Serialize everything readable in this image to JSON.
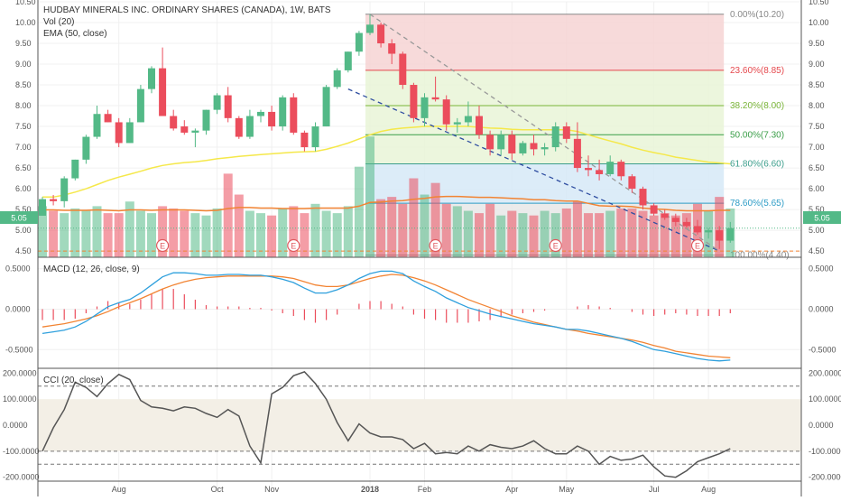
{
  "header": {
    "title": "HUDBAY MINERALS INC. ORDINARY SHARES (CANADA), 1W, BATS",
    "vol_label": "Vol (20)",
    "ema_label": "EMA (50, close)",
    "macd_label": "MACD (12, 26, close, 9)",
    "cci_label": "CCI (20, close)"
  },
  "colors": {
    "up": "#53b987",
    "down": "#eb4d5c",
    "ema": "#f5e84a",
    "macd_line": "#2fa0dd",
    "signal_line": "#f28433",
    "trendline": "#2f4ea1",
    "price_tag": "#53b987"
  },
  "price_badge": "5.05",
  "chart_data": [
    {
      "type": "candlestick",
      "name": "price",
      "yaxis": {
        "range": [
          4.35,
          10.5
        ],
        "ticks": [
          "4.50",
          "5.00",
          "5.50",
          "6.00",
          "6.50",
          "7.00",
          "7.50",
          "8.00",
          "8.50",
          "9.00",
          "9.50",
          "10.00",
          "10.50"
        ]
      },
      "xaxis": {
        "tick_labels": [
          "Aug",
          "Oct",
          "Nov",
          "2018",
          "Feb",
          "Apr",
          "May",
          "Jul",
          "Aug"
        ],
        "tick_index": [
          7,
          16,
          21,
          30,
          35,
          43,
          48,
          56,
          61
        ]
      },
      "candles": [
        [
          5.35,
          5.8,
          5.35,
          5.75
        ],
        [
          5.75,
          5.85,
          5.6,
          5.7
        ],
        [
          5.7,
          6.3,
          5.55,
          6.25
        ],
        [
          6.25,
          6.7,
          6.2,
          6.7
        ],
        [
          6.7,
          7.3,
          6.6,
          7.25
        ],
        [
          7.25,
          8.0,
          7.2,
          7.8
        ],
        [
          7.8,
          7.9,
          7.6,
          7.6
        ],
        [
          7.6,
          7.7,
          7.0,
          7.1
        ],
        [
          7.1,
          7.7,
          7.1,
          7.6
        ],
        [
          7.6,
          8.5,
          7.6,
          8.4
        ],
        [
          8.4,
          8.95,
          8.3,
          8.9
        ],
        [
          8.9,
          9.4,
          7.8,
          7.75
        ],
        [
          7.75,
          7.9,
          7.4,
          7.45
        ],
        [
          7.5,
          7.65,
          7.3,
          7.35
        ],
        [
          7.35,
          7.45,
          7.0,
          7.4
        ],
        [
          7.4,
          7.9,
          7.3,
          7.9
        ],
        [
          7.9,
          8.3,
          7.8,
          8.25
        ],
        [
          8.25,
          8.45,
          7.6,
          7.7
        ],
        [
          7.7,
          7.75,
          7.2,
          7.25
        ],
        [
          7.25,
          7.9,
          7.2,
          7.75
        ],
        [
          7.75,
          7.9,
          7.6,
          7.85
        ],
        [
          7.85,
          8.0,
          7.4,
          7.5
        ],
        [
          7.5,
          8.25,
          7.4,
          8.2
        ],
        [
          8.2,
          8.3,
          7.3,
          7.35
        ],
        [
          7.35,
          7.4,
          6.9,
          7.0
        ],
        [
          7.0,
          7.6,
          6.9,
          7.5
        ],
        [
          7.5,
          8.5,
          7.5,
          8.45
        ],
        [
          8.45,
          8.9,
          8.4,
          8.85
        ],
        [
          8.85,
          9.3,
          8.8,
          9.3
        ],
        [
          9.3,
          9.8,
          9.2,
          9.75
        ],
        [
          9.75,
          10.2,
          9.7,
          9.95
        ],
        [
          9.95,
          10.0,
          9.4,
          9.5
        ],
        [
          9.5,
          9.6,
          9.0,
          9.25
        ],
        [
          9.25,
          9.3,
          8.4,
          8.5
        ],
        [
          8.5,
          8.55,
          7.6,
          7.7
        ],
        [
          7.7,
          8.3,
          7.5,
          8.2
        ],
        [
          8.2,
          8.7,
          8.1,
          8.15
        ],
        [
          8.15,
          8.25,
          7.4,
          7.55
        ],
        [
          7.55,
          7.7,
          7.35,
          7.6
        ],
        [
          7.6,
          8.1,
          7.5,
          7.75
        ],
        [
          7.75,
          8.0,
          7.2,
          7.3
        ],
        [
          7.3,
          7.4,
          6.8,
          6.95
        ],
        [
          6.95,
          7.4,
          6.8,
          7.3
        ],
        [
          7.3,
          7.4,
          6.7,
          6.85
        ],
        [
          6.85,
          7.15,
          6.8,
          7.1
        ],
        [
          7.1,
          7.3,
          6.8,
          6.95
        ],
        [
          6.95,
          7.1,
          6.8,
          7.0
        ],
        [
          7.0,
          7.6,
          6.9,
          7.5
        ],
        [
          7.5,
          7.6,
          7.1,
          7.2
        ],
        [
          7.2,
          7.6,
          6.4,
          6.5
        ],
        [
          6.5,
          6.8,
          6.3,
          6.45
        ],
        [
          6.45,
          6.7,
          6.2,
          6.35
        ],
        [
          6.35,
          6.8,
          6.3,
          6.65
        ],
        [
          6.65,
          6.7,
          6.2,
          6.3
        ],
        [
          6.3,
          6.35,
          5.9,
          6.0
        ],
        [
          6.0,
          6.05,
          5.5,
          5.6
        ],
        [
          5.6,
          5.65,
          5.35,
          5.4
        ],
        [
          5.4,
          5.5,
          5.25,
          5.3
        ],
        [
          5.3,
          5.4,
          5.1,
          5.2
        ],
        [
          5.2,
          5.3,
          5.05,
          5.1
        ],
        [
          5.1,
          5.25,
          4.9,
          4.95
        ],
        [
          4.95,
          5.05,
          4.8,
          5.0
        ],
        [
          5.0,
          5.1,
          4.55,
          4.75
        ],
        [
          4.75,
          5.2,
          4.7,
          5.05
        ]
      ],
      "ema": [
        5.8,
        5.8,
        5.85,
        5.92,
        6.0,
        6.1,
        6.2,
        6.28,
        6.35,
        6.42,
        6.5,
        6.56,
        6.6,
        6.63,
        6.65,
        6.68,
        6.72,
        6.75,
        6.78,
        6.8,
        6.82,
        6.84,
        6.86,
        6.88,
        6.89,
        6.9,
        6.95,
        7.02,
        7.1,
        7.2,
        7.3,
        7.38,
        7.43,
        7.46,
        7.48,
        7.5,
        7.5,
        7.5,
        7.5,
        7.5,
        7.48,
        7.46,
        7.45,
        7.43,
        7.42,
        7.42,
        7.42,
        7.42,
        7.42,
        7.38,
        7.3,
        7.22,
        7.15,
        7.08,
        7.0,
        6.93,
        6.87,
        6.82,
        6.76,
        6.72,
        6.68,
        6.64,
        6.62,
        6.6
      ],
      "volume": [
        1.1,
        1.0,
        0.95,
        1.05,
        1.0,
        1.1,
        0.95,
        0.95,
        1.2,
        1.0,
        0.95,
        1.1,
        1.05,
        1.0,
        0.95,
        0.9,
        1.05,
        1.8,
        1.35,
        1.0,
        0.95,
        0.9,
        1.05,
        1.1,
        0.95,
        1.15,
        1.0,
        0.95,
        1.1,
        1.95,
        2.6,
        1.25,
        1.3,
        1.15,
        1.7,
        1.35,
        1.6,
        1.15,
        1.1,
        1.0,
        0.95,
        1.15,
        0.9,
        1.0,
        0.95,
        0.9,
        1.0,
        0.95,
        1.05,
        1.2,
        0.95,
        0.95,
        1.0,
        1.05,
        1.05,
        1.0,
        0.9,
        0.95,
        0.9,
        0.95,
        1.15,
        1.0,
        1.3,
        1.05
      ],
      "volume_range": [
        0,
        5.5
      ],
      "volume_ma": [
        1.02,
        1.02,
        1.01,
        1.01,
        1.01,
        1.02,
        1.01,
        1.0,
        1.02,
        1.02,
        1.01,
        1.02,
        1.02,
        1.02,
        1.01,
        1.0,
        1.01,
        1.05,
        1.07,
        1.07,
        1.06,
        1.06,
        1.05,
        1.05,
        1.05,
        1.06,
        1.06,
        1.06,
        1.06,
        1.1,
        1.18,
        1.19,
        1.21,
        1.22,
        1.25,
        1.27,
        1.3,
        1.31,
        1.31,
        1.3,
        1.29,
        1.29,
        1.28,
        1.27,
        1.26,
        1.24,
        1.24,
        1.22,
        1.21,
        1.21,
        1.16,
        1.11,
        1.1,
        1.1,
        1.09,
        1.06,
        1.04,
        1.03,
        1.01,
        1.0,
        1.0,
        1.0,
        1.01,
        1.01
      ],
      "earnings_markers": {
        "index": [
          11,
          23,
          36,
          47,
          60
        ],
        "label": "E"
      },
      "trendlines": [
        {
          "from": [
            28,
            8.4
          ],
          "to": [
            62,
            4.5
          ],
          "style": "dashed",
          "color": "#2f4ea1"
        },
        {
          "from": [
            30,
            10.2
          ],
          "to": [
            62,
            4.5
          ],
          "style": "dashed",
          "color": "#999999"
        }
      ],
      "fibonacci": {
        "start_index": 30,
        "end_index": 62,
        "levels": [
          {
            "label": "0.00%(10.20)",
            "value": 10.2,
            "color": "#888888",
            "fill": "#f6d4d4"
          },
          {
            "label": "23.60%(8.85)",
            "value": 8.85,
            "color": "#e5484d",
            "fill": "#e9f5d7"
          },
          {
            "label": "38.20%(8.00)",
            "value": 8.0,
            "color": "#7ab539",
            "fill": "#e9f5d7"
          },
          {
            "label": "50.00%(7.30)",
            "value": 7.3,
            "color": "#3a9e48",
            "fill": "#e9f5d7"
          },
          {
            "label": "61.80%(6.60)",
            "value": 6.6,
            "color": "#3c9e8c",
            "fill": "#d6e9f7"
          },
          {
            "label": "78.60%(5.65)",
            "value": 5.65,
            "color": "#2e9cc6",
            "fill": "#e8e8e8"
          },
          {
            "label": "100.00%(4.40)",
            "value": 4.4,
            "color": "#888888",
            "fill": ""
          }
        ]
      },
      "last_price": 5.05,
      "dashed_level": 4.5
    },
    {
      "type": "line",
      "name": "MACD",
      "yaxis": {
        "range": [
          -0.72,
          0.62
        ],
        "ticks": [
          "0.5000",
          "0.0000",
          "-0.5000"
        ]
      },
      "histogram_range": [
        -0.4,
        0.4
      ],
      "macd": [
        -0.3,
        -0.28,
        -0.26,
        -0.22,
        -0.15,
        -0.06,
        0.03,
        0.08,
        0.12,
        0.2,
        0.3,
        0.4,
        0.45,
        0.45,
        0.44,
        0.42,
        0.42,
        0.43,
        0.43,
        0.42,
        0.42,
        0.4,
        0.37,
        0.33,
        0.26,
        0.2,
        0.2,
        0.24,
        0.3,
        0.38,
        0.44,
        0.47,
        0.47,
        0.44,
        0.35,
        0.28,
        0.22,
        0.14,
        0.08,
        0.02,
        -0.02,
        -0.06,
        -0.09,
        -0.12,
        -0.15,
        -0.18,
        -0.2,
        -0.22,
        -0.25,
        -0.25,
        -0.27,
        -0.3,
        -0.33,
        -0.36,
        -0.4,
        -0.45,
        -0.5,
        -0.52,
        -0.55,
        -0.58,
        -0.61,
        -0.63,
        -0.64,
        -0.63
      ],
      "signal": [
        -0.22,
        -0.2,
        -0.18,
        -0.15,
        -0.12,
        -0.08,
        -0.03,
        0.03,
        0.08,
        0.13,
        0.19,
        0.25,
        0.3,
        0.34,
        0.37,
        0.39,
        0.4,
        0.41,
        0.41,
        0.41,
        0.41,
        0.41,
        0.4,
        0.38,
        0.34,
        0.3,
        0.28,
        0.28,
        0.3,
        0.34,
        0.38,
        0.41,
        0.43,
        0.42,
        0.39,
        0.35,
        0.3,
        0.24,
        0.18,
        0.12,
        0.07,
        0.02,
        -0.03,
        -0.08,
        -0.12,
        -0.16,
        -0.19,
        -0.22,
        -0.25,
        -0.27,
        -0.3,
        -0.32,
        -0.34,
        -0.36,
        -0.38,
        -0.41,
        -0.45,
        -0.48,
        -0.52,
        -0.54,
        -0.56,
        -0.58,
        -0.59,
        -0.6
      ],
      "histogram": [
        -0.08,
        -0.08,
        -0.08,
        -0.07,
        -0.03,
        0.02,
        0.06,
        0.05,
        0.04,
        0.07,
        0.11,
        0.15,
        0.15,
        0.11,
        0.07,
        0.03,
        0.02,
        0.02,
        0.02,
        0.01,
        0.01,
        -0.01,
        -0.03,
        -0.05,
        -0.08,
        -0.1,
        -0.08,
        -0.04,
        0.0,
        0.04,
        0.06,
        0.06,
        0.04,
        0.02,
        -0.04,
        -0.07,
        -0.08,
        -0.1,
        -0.1,
        -0.1,
        -0.09,
        -0.08,
        -0.06,
        -0.04,
        -0.03,
        -0.02,
        -0.01,
        0.0,
        0.0,
        0.02,
        0.03,
        0.02,
        0.01,
        0.0,
        -0.02,
        -0.04,
        -0.05,
        -0.04,
        -0.03,
        -0.04,
        -0.05,
        -0.05,
        -0.05,
        -0.03
      ]
    },
    {
      "type": "line",
      "name": "CCI",
      "yaxis": {
        "range": [
          -215,
          215
        ],
        "ticks": [
          "200.0000",
          "100.0000",
          "0.0000",
          "-100.0000",
          "-200.0000"
        ]
      },
      "bands": [
        100,
        -100
      ],
      "cci": [
        -100,
        -10,
        60,
        165,
        145,
        110,
        160,
        195,
        175,
        95,
        70,
        65,
        55,
        70,
        65,
        45,
        30,
        60,
        35,
        -80,
        -145,
        120,
        145,
        190,
        205,
        160,
        100,
        10,
        -60,
        5,
        -30,
        -45,
        -45,
        -55,
        -90,
        -70,
        -110,
        -105,
        -110,
        -80,
        -100,
        -75,
        -85,
        -90,
        -80,
        -60,
        -90,
        -110,
        -110,
        -80,
        -100,
        -150,
        -120,
        -135,
        -130,
        -115,
        -160,
        -195,
        -200,
        -175,
        -140,
        -125,
        -110,
        -90
      ]
    }
  ]
}
